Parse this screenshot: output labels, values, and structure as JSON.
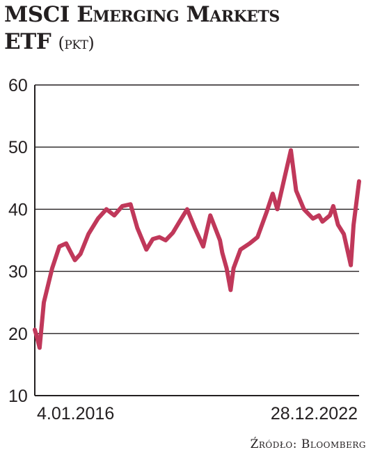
{
  "header": {
    "title_line1_a": "MSCI",
    "title_line1_b": "Emerging Markets",
    "title_line2": "ETF",
    "unit": "(pkt)"
  },
  "source": "Źródło: Bloomberg",
  "colors": {
    "line": "#c0385a",
    "grid": "#231f20",
    "text": "#231f20"
  },
  "chart_data": {
    "type": "line",
    "title": "MSCI Emerging Markets ETF",
    "ylabel": "(pkt)",
    "xlabel": "",
    "ylim": [
      10,
      60
    ],
    "yticks": [
      10,
      20,
      30,
      40,
      50,
      60
    ],
    "grid": true,
    "x_tick_labels": [
      "4.01.2016",
      "28.12.2022"
    ],
    "x_start": "2016-01-04",
    "x_end": "2022-12-28",
    "series": [
      {
        "name": "",
        "x": [
          "2016-01-04",
          "2016-01-20",
          "2016-02-11",
          "2016-03-15",
          "2016-05-20",
          "2016-07-15",
          "2016-09-07",
          "2016-11-14",
          "2016-12-28",
          "2017-03-01",
          "2017-05-15",
          "2017-07-20",
          "2017-09-20",
          "2017-11-22",
          "2018-01-26",
          "2018-03-20",
          "2018-05-30",
          "2018-07-20",
          "2018-09-10",
          "2018-10-29",
          "2018-12-24",
          "2019-02-15",
          "2019-04-16",
          "2019-06-15",
          "2019-08-20",
          "2019-10-15",
          "2019-12-30",
          "2020-01-17",
          "2020-02-20",
          "2020-03-23",
          "2020-04-15",
          "2020-06-08",
          "2020-08-20",
          "2020-10-20",
          "2020-12-30",
          "2021-02-17",
          "2021-03-25",
          "2021-05-20",
          "2021-07-10",
          "2021-08-20",
          "2021-10-20",
          "2021-12-30",
          "2022-02-15",
          "2022-03-15",
          "2022-05-12",
          "2022-06-08",
          "2022-07-15",
          "2022-08-30",
          "2022-10-24",
          "2022-11-15",
          "2022-12-28"
        ],
        "y": [
          20.6,
          19.5,
          17.7,
          25.0,
          30.5,
          34.0,
          34.5,
          31.8,
          32.8,
          36.0,
          38.5,
          40.0,
          39.0,
          40.5,
          40.8,
          37.0,
          33.5,
          35.2,
          35.5,
          35.0,
          36.2,
          38.0,
          40.0,
          37.0,
          34.0,
          39.0,
          35.0,
          33.0,
          30.5,
          27.0,
          30.5,
          33.5,
          34.5,
          35.5,
          39.5,
          42.5,
          40.0,
          45.0,
          49.5,
          43.0,
          40.0,
          38.5,
          39.0,
          38.0,
          39.0,
          40.5,
          37.5,
          36.0,
          31.0,
          37.5,
          44.5
        ]
      }
    ]
  }
}
